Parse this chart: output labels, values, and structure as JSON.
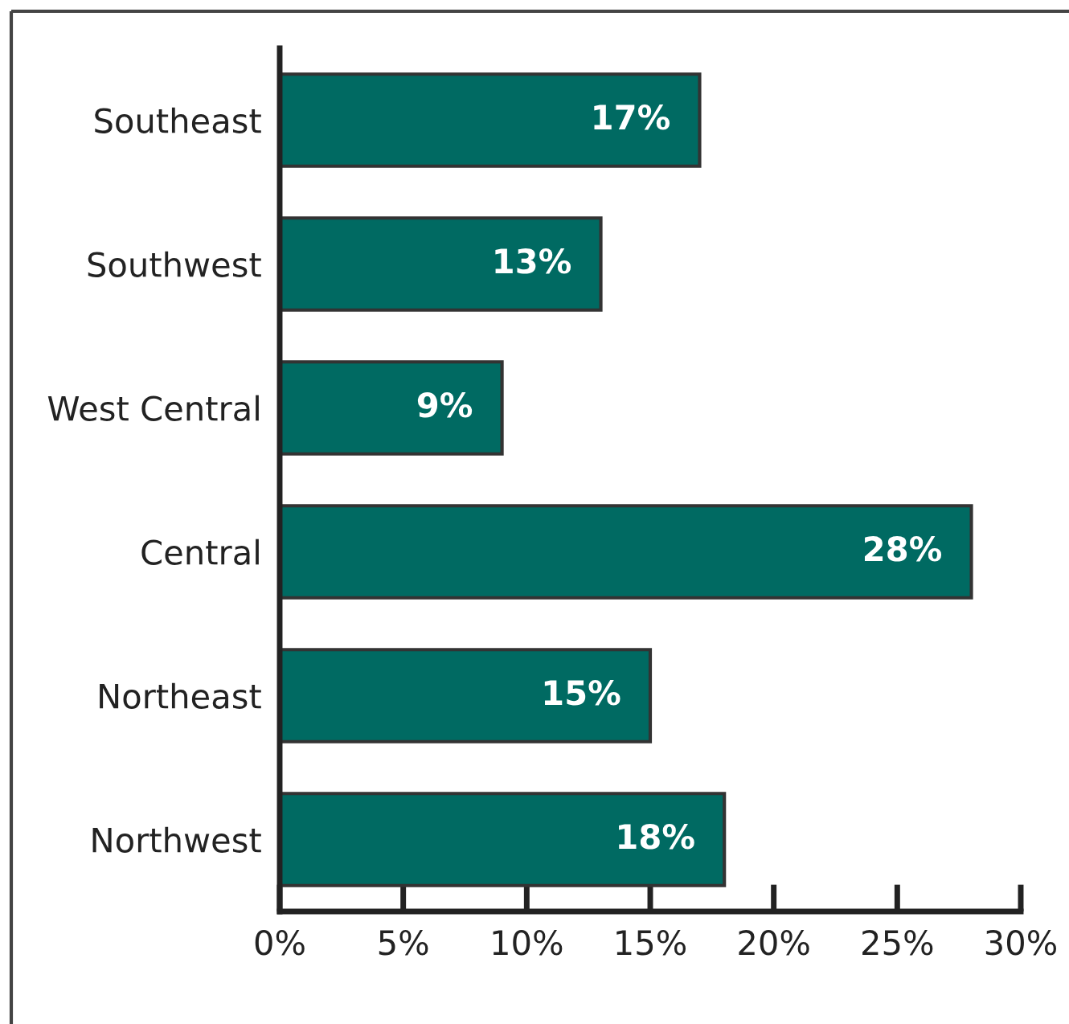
{
  "chart_data": {
    "type": "bar",
    "orientation": "horizontal",
    "categories": [
      "Southeast",
      "Southwest",
      "West Central",
      "Central",
      "Northeast",
      "Northwest"
    ],
    "values": [
      17,
      13,
      9,
      28,
      15,
      18
    ],
    "color": "#006a62",
    "value_labels": [
      "17%",
      "13%",
      "9%",
      "28%",
      "15%",
      "18%"
    ],
    "xlim": [
      0,
      30
    ],
    "xticks": [
      {
        "value": 0,
        "label": "0%"
      },
      {
        "value": 5,
        "label": "5%"
      },
      {
        "value": 10,
        "label": "10%"
      },
      {
        "value": 15,
        "label": "15%"
      },
      {
        "value": 20,
        "label": "20%"
      },
      {
        "value": 25,
        "label": "25%"
      },
      {
        "value": 30,
        "label": "30%"
      }
    ],
    "grid": false
  }
}
